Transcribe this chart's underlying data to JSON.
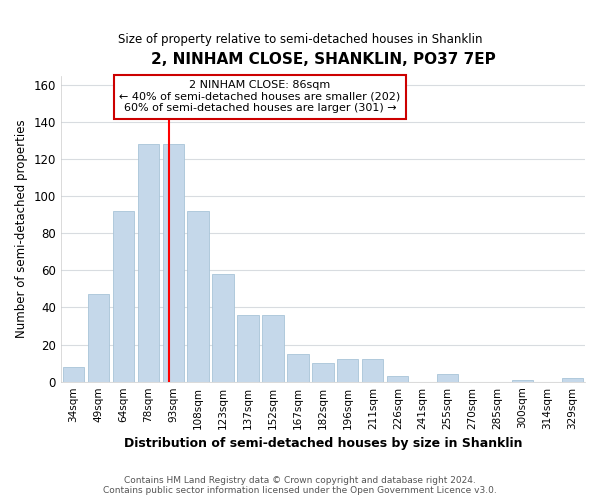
{
  "title": "2, NINHAM CLOSE, SHANKLIN, PO37 7EP",
  "subtitle": "Size of property relative to semi-detached houses in Shanklin",
  "xlabel": "Distribution of semi-detached houses by size in Shanklin",
  "ylabel": "Number of semi-detached properties",
  "categories": [
    "34sqm",
    "49sqm",
    "64sqm",
    "78sqm",
    "93sqm",
    "108sqm",
    "123sqm",
    "137sqm",
    "152sqm",
    "167sqm",
    "182sqm",
    "196sqm",
    "211sqm",
    "226sqm",
    "241sqm",
    "255sqm",
    "270sqm",
    "285sqm",
    "300sqm",
    "314sqm",
    "329sqm"
  ],
  "values": [
    8,
    47,
    92,
    128,
    128,
    92,
    58,
    36,
    36,
    15,
    10,
    12,
    12,
    3,
    0,
    4,
    0,
    0,
    1,
    0,
    2
  ],
  "bar_color": "#c5d8ea",
  "bar_edge_color": "#a8c4d8",
  "ylim": [
    0,
    165
  ],
  "yticks": [
    0,
    20,
    40,
    60,
    80,
    100,
    120,
    140,
    160
  ],
  "property_label": "2 NINHAM CLOSE: 86sqm",
  "pct_smaller": 40,
  "pct_larger": 60,
  "n_smaller": 202,
  "n_larger": 301,
  "vline_x_index": 3.85,
  "annotation_box_color": "#cc0000",
  "footer_line1": "Contains HM Land Registry data © Crown copyright and database right 2024.",
  "footer_line2": "Contains public sector information licensed under the Open Government Licence v3.0.",
  "background_color": "#ffffff",
  "grid_color": "#d8dce0"
}
